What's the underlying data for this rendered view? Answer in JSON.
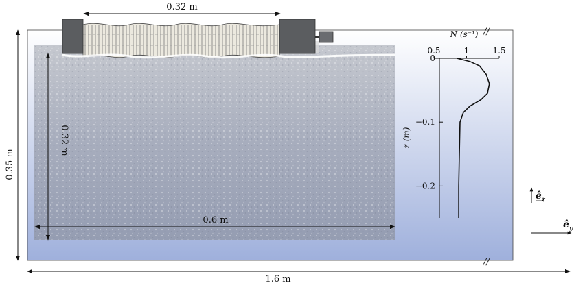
{
  "dimensions": {
    "wavemaker_length": "0.32 m",
    "tank_height": "0.35 m",
    "field_height": "0.32 m",
    "field_width": "0.6 m",
    "tank_length": "1.6 m"
  },
  "profile": {
    "top_label": "N  (s⁻¹)",
    "x_ticks": [
      "0.5",
      "1",
      "1.5"
    ],
    "y_label": "z  (m)",
    "y_ticks": [
      "0",
      "−0.1",
      "−0.2"
    ],
    "break_mark": "//"
  },
  "axes": {
    "ez": "ê",
    "ez_sub": "z",
    "ey": "ê",
    "ey_sub": "y"
  },
  "colors": {
    "tank_top": "#ffffff",
    "tank_bottom": "#9fb0dc",
    "field": "#9ea6b8",
    "wavemaker_body": "#5b5d60",
    "profile_line": "#111111"
  },
  "chart_data": {
    "type": "line",
    "title": "",
    "xlabel": "N (s^-1)",
    "ylabel": "z (m)",
    "xlim": [
      0.5,
      1.5
    ],
    "ylim": [
      -0.25,
      0
    ],
    "series": [
      {
        "x": [
          0.85,
          1.05,
          1.2,
          1.3,
          1.35,
          1.32,
          1.22,
          1.05,
          0.95,
          0.9,
          0.89,
          0.88,
          0.88
        ],
        "y": [
          0,
          -0.005,
          -0.012,
          -0.025,
          -0.04,
          -0.055,
          -0.065,
          -0.075,
          -0.085,
          -0.1,
          -0.15,
          -0.2,
          -0.25
        ]
      }
    ]
  }
}
